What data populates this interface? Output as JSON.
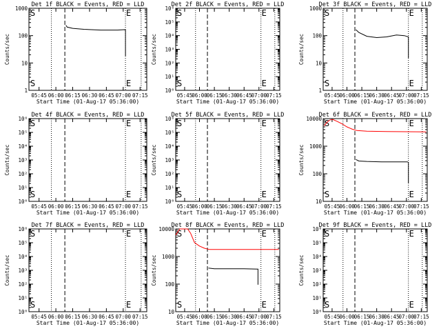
{
  "figure": {
    "x_tick_labels": [
      "05:45",
      "06:00",
      "06:15",
      "06:30",
      "06:45",
      "07:00",
      "07:15"
    ],
    "x_label": "Start Time (01-Aug-17 05:36:00)",
    "y_label": "Counts/sec",
    "marker_s": "S",
    "marker_e": "E",
    "colors": {
      "events": "#000000",
      "lld": "#ff0000",
      "axes": "#000000",
      "background": "#ffffff"
    }
  },
  "chart_data": [
    {
      "type": "line",
      "title": "Det 1f BLACK = Events, RED = LLD",
      "yscale": "log",
      "ylim": [
        1,
        1000
      ],
      "y_ticks": [
        1,
        10,
        100,
        1000
      ],
      "y_tick_labels": [
        "1",
        "10",
        "100",
        "1000"
      ],
      "x_range": [
        "05:36",
        "07:21"
      ],
      "vlines_dotted": [
        "05:56",
        "07:02",
        "07:16"
      ],
      "vline_dashed": "06:08",
      "series": [
        {
          "color": "#000000",
          "x": [
            "06:09",
            "06:10",
            "06:15",
            "06:25",
            "06:40",
            "06:55",
            "07:01",
            "07:02",
            "07:02"
          ],
          "values": [
            240,
            205,
            185,
            170,
            160,
            160,
            165,
            160,
            18
          ]
        }
      ]
    },
    {
      "type": "line",
      "title": "Det 2f BLACK = Events, RED = LLD",
      "yscale": "log",
      "ylim": [
        1,
        1000000
      ],
      "y_ticks": [
        1,
        10,
        100,
        1000,
        10000,
        100000,
        1000000
      ],
      "y_tick_labels": [
        "10⁰",
        "10¹",
        "10²",
        "10³",
        "10⁴",
        "10⁵",
        "10⁶"
      ],
      "x_range": [
        "05:36",
        "07:21"
      ],
      "vlines_dotted": [
        "05:56",
        "07:02",
        "07:16"
      ],
      "vline_dashed": "06:08",
      "series": []
    },
    {
      "type": "line",
      "title": "Det 3f BLACK = Events, RED = LLD",
      "yscale": "log",
      "ylim": [
        1,
        1000
      ],
      "y_ticks": [
        1,
        10,
        100,
        1000
      ],
      "y_tick_labels": [
        "1",
        "10",
        "100",
        "1000"
      ],
      "x_range": [
        "05:36",
        "07:21"
      ],
      "vlines_dotted": [
        "05:56",
        "07:02",
        "07:16"
      ],
      "vline_dashed": "06:08",
      "series": [
        {
          "color": "#000000",
          "x": [
            "06:09",
            "06:12",
            "06:20",
            "06:30",
            "06:40",
            "06:50",
            "06:58",
            "07:02",
            "07:02"
          ],
          "values": [
            165,
            130,
            95,
            85,
            90,
            105,
            100,
            90,
            15
          ]
        }
      ]
    },
    {
      "type": "line",
      "title": "Det 4f BLACK = Events, RED = LLD",
      "yscale": "log",
      "ylim": [
        1,
        1000000
      ],
      "y_ticks": [
        1,
        10,
        100,
        1000,
        10000,
        100000,
        1000000
      ],
      "y_tick_labels": [
        "10⁰",
        "10¹",
        "10²",
        "10³",
        "10⁴",
        "10⁵",
        "10⁶"
      ],
      "x_range": [
        "05:36",
        "07:21"
      ],
      "vlines_dotted": [
        "05:56",
        "07:02",
        "07:16"
      ],
      "vline_dashed": "06:08",
      "series": []
    },
    {
      "type": "line",
      "title": "Det 5f BLACK = Events, RED = LLD",
      "yscale": "log",
      "ylim": [
        1,
        1000000
      ],
      "y_ticks": [
        1,
        10,
        100,
        1000,
        10000,
        100000,
        1000000
      ],
      "y_tick_labels": [
        "10⁰",
        "10¹",
        "10²",
        "10³",
        "10⁴",
        "10⁵",
        "10⁶"
      ],
      "x_range": [
        "05:36",
        "07:21"
      ],
      "vlines_dotted": [
        "05:56",
        "07:02",
        "07:16"
      ],
      "vline_dashed": "06:08",
      "series": []
    },
    {
      "type": "line",
      "title": "Det 6f BLACK = Events, RED = LLD",
      "yscale": "log",
      "ylim": [
        10,
        10000
      ],
      "y_ticks": [
        10,
        100,
        1000,
        10000
      ],
      "y_tick_labels": [
        "10",
        "100",
        "1000",
        "10000"
      ],
      "x_range": [
        "05:36",
        "07:21"
      ],
      "vlines_dotted": [
        "05:56",
        "07:02",
        "07:16"
      ],
      "vline_dashed": "06:08",
      "series": [
        {
          "color": "#ff0000",
          "x": [
            "05:37",
            "05:40",
            "05:43",
            "05:46",
            "05:50",
            "05:55",
            "06:00",
            "06:05",
            "06:10",
            "06:20",
            "06:40",
            "07:00",
            "07:20"
          ],
          "values": [
            5500,
            7500,
            9000,
            9200,
            8000,
            6500,
            5000,
            4200,
            3700,
            3500,
            3400,
            3350,
            3300
          ]
        },
        {
          "color": "#000000",
          "x": [
            "06:09",
            "06:12",
            "06:20",
            "06:35",
            "06:50",
            "07:01",
            "07:02",
            "07:02"
          ],
          "values": [
            330,
            290,
            280,
            270,
            270,
            270,
            260,
            45
          ]
        }
      ]
    },
    {
      "type": "line",
      "title": "Det 7f BLACK = Events, RED = LLD",
      "yscale": "log",
      "ylim": [
        1,
        1000000
      ],
      "y_ticks": [
        1,
        10,
        100,
        1000,
        10000,
        100000,
        1000000
      ],
      "y_tick_labels": [
        "10⁰",
        "10¹",
        "10²",
        "10³",
        "10⁴",
        "10⁵",
        "10⁶"
      ],
      "x_range": [
        "05:36",
        "07:21"
      ],
      "vlines_dotted": [
        "05:56",
        "07:02",
        "07:16"
      ],
      "vline_dashed": "06:08",
      "series": []
    },
    {
      "type": "line",
      "title": "Det 8f BLACK = Events, RED = LLD",
      "yscale": "log",
      "ylim": [
        10,
        10000
      ],
      "y_ticks": [
        10,
        100,
        1000,
        10000
      ],
      "y_tick_labels": [
        "10",
        "100",
        "1000",
        "10000"
      ],
      "x_range": [
        "05:36",
        "07:21"
      ],
      "vlines_dotted": [
        "05:56",
        "07:02",
        "07:16"
      ],
      "vline_dashed": "06:08",
      "series": [
        {
          "color": "#ff0000",
          "x": [
            "05:36",
            "05:40",
            "05:44",
            "05:48",
            "05:51",
            "05:55",
            "06:00",
            "06:05",
            "06:10",
            "06:30",
            "07:00",
            "07:20"
          ],
          "values": [
            6000,
            10000,
            12000,
            10500,
            7000,
            3200,
            2400,
            2000,
            1800,
            1800,
            1800,
            1800
          ]
        },
        {
          "color": "#000000",
          "x": [
            "06:09",
            "06:15",
            "06:30",
            "06:45",
            "06:59",
            "06:59"
          ],
          "values": [
            380,
            360,
            360,
            360,
            350,
            95
          ]
        }
      ]
    },
    {
      "type": "line",
      "title": "Det 9f BLACK = Events, RED = LLD",
      "yscale": "log",
      "ylim": [
        1,
        1000000
      ],
      "y_ticks": [
        1,
        10,
        100,
        1000,
        10000,
        100000,
        1000000
      ],
      "y_tick_labels": [
        "10⁰",
        "10¹",
        "10²",
        "10³",
        "10⁴",
        "10⁵",
        "10⁶"
      ],
      "x_range": [
        "05:36",
        "07:21"
      ],
      "vlines_dotted": [
        "05:56",
        "07:02",
        "07:16"
      ],
      "vline_dashed": "06:08",
      "series": []
    }
  ]
}
